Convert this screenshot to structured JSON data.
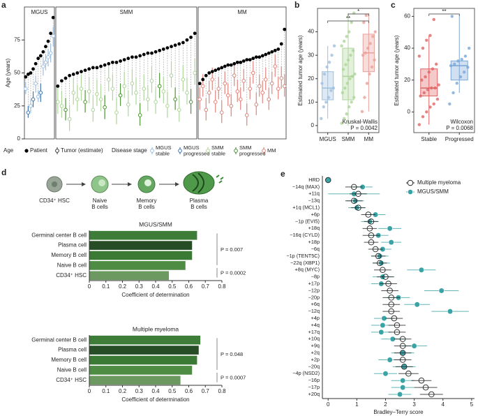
{
  "chart_data": [
    {
      "type": "dot_range",
      "panel_label": "a",
      "ylabel": "Age (years)",
      "ylim": [
        0,
        100
      ],
      "yticks": [
        0,
        25,
        50,
        75
      ],
      "age_legend_title": "Age",
      "patient_label": "Patient",
      "tumor_label": "Tumor (estimate)",
      "stage_legend_title": "Disease stage",
      "patient_color": "#000000",
      "facets": [
        {
          "title": "MGUS",
          "xlim": [
            0.5,
            12.5
          ],
          "series": [
            {
              "name": "MGUS stable",
              "color": "#9dbfe0",
              "x": [
                1,
                3,
                5,
                6,
                8,
                9,
                10,
                11,
                12
              ],
              "patient": [
                47,
                50,
                57,
                61,
                66,
                70,
                74,
                80,
                92
              ],
              "tumor": [
                38,
                25,
                42,
                32,
                55,
                58,
                62,
                65,
                78
              ],
              "low": [
                34,
                20,
                35,
                28,
                48,
                52,
                55,
                58,
                70
              ],
              "high": [
                43,
                30,
                48,
                37,
                62,
                64,
                68,
                72,
                85
              ]
            },
            {
              "name": "MGUS progressed",
              "color": "#3f78b0",
              "x": [
                2,
                4,
                7
              ],
              "patient": [
                49,
                53,
                63
              ],
              "tumor": [
                20,
                30,
                35
              ],
              "low": [
                16,
                24,
                28
              ],
              "high": [
                25,
                36,
                42
              ]
            }
          ]
        },
        {
          "title": "SMM",
          "xlim": [
            0.5,
            36.5
          ],
          "series": [
            {
              "name": "SMM stable",
              "color": "#add59a",
              "x": [
                1,
                2,
                4,
                5,
                6,
                7,
                9,
                10,
                11,
                12,
                14,
                15,
                16,
                18,
                19,
                20,
                21,
                23,
                24,
                25,
                26,
                28,
                29,
                30,
                32,
                33,
                34,
                36
              ],
              "patient": [
                40,
                44,
                48,
                49,
                50,
                51,
                53,
                54,
                54,
                55,
                57,
                58,
                58,
                60,
                61,
                62,
                62,
                64,
                65,
                65,
                66,
                68,
                69,
                70,
                72,
                73,
                75,
                80
              ],
              "tumor": [
                28,
                25,
                15,
                35,
                30,
                38,
                36,
                22,
                34,
                30,
                45,
                38,
                20,
                40,
                26,
                42,
                35,
                38,
                30,
                44,
                28,
                36,
                25,
                48,
                22,
                45,
                35,
                50
              ],
              "low": [
                19,
                16,
                6,
                26,
                21,
                29,
                27,
                13,
                25,
                21,
                36,
                29,
                11,
                31,
                17,
                33,
                26,
                29,
                21,
                35,
                19,
                27,
                16,
                39,
                13,
                36,
                26,
                41
              ],
              "high": [
                39,
                36,
                26,
                46,
                41,
                49,
                47,
                33,
                45,
                41,
                56,
                49,
                31,
                51,
                37,
                53,
                46,
                49,
                41,
                55,
                39,
                47,
                36,
                59,
                33,
                56,
                46,
                61
              ]
            },
            {
              "name": "SMM progressed",
              "color": "#4f9436",
              "x": [
                3,
                8,
                13,
                17,
                22,
                27,
                31,
                35
              ],
              "patient": [
                46,
                52,
                56,
                59,
                63,
                67,
                71,
                77
              ],
              "tumor": [
                22,
                28,
                24,
                33,
                18,
                40,
                30,
                28
              ],
              "low": [
                14,
                20,
                15,
                25,
                10,
                31,
                22,
                19
              ],
              "high": [
                31,
                37,
                33,
                42,
                27,
                50,
                39,
                38
              ]
            }
          ]
        },
        {
          "title": "MM",
          "xlim": [
            0.5,
            28.5
          ],
          "series": [
            {
              "name": "MM",
              "color": "#e0857c",
              "x": [
                1,
                2,
                3,
                4,
                5,
                6,
                7,
                8,
                9,
                10,
                11,
                12,
                13,
                14,
                15,
                16,
                17,
                18,
                19,
                20,
                21,
                22,
                23,
                24,
                25,
                26,
                27,
                28
              ],
              "patient": [
                42,
                45,
                48,
                50,
                51,
                52,
                53,
                54,
                55,
                56,
                56,
                57,
                58,
                58,
                59,
                60,
                60,
                61,
                62,
                62,
                63,
                64,
                65,
                66,
                67,
                68,
                72,
                83
              ],
              "tumor": [
                30,
                40,
                22,
                35,
                45,
                28,
                38,
                20,
                42,
                33,
                25,
                48,
                36,
                30,
                44,
                18,
                38,
                50,
                26,
                40,
                35,
                45,
                30,
                42,
                55,
                38,
                46,
                40
              ],
              "low": [
                22,
                32,
                14,
                27,
                37,
                20,
                30,
                12,
                34,
                25,
                17,
                40,
                28,
                22,
                36,
                10,
                30,
                42,
                18,
                32,
                27,
                37,
                22,
                34,
                47,
                30,
                38,
                32
              ],
              "high": [
                39,
                49,
                31,
                44,
                54,
                37,
                47,
                29,
                51,
                42,
                34,
                57,
                45,
                39,
                53,
                27,
                47,
                59,
                35,
                49,
                44,
                54,
                39,
                51,
                64,
                47,
                55,
                49
              ]
            }
          ]
        }
      ]
    },
    {
      "type": "box",
      "panel_label": "b",
      "ylabel": "Estimated tumor age (years)",
      "ylim": [
        -3,
        50
      ],
      "yticks": [
        0,
        10,
        20,
        30,
        40
      ],
      "categories": [
        "MGUS",
        "SMM",
        "MM"
      ],
      "series": [
        {
          "color": "#9dbfe0",
          "box": [
            3,
            11,
            16,
            23,
            34
          ],
          "points": [
            3,
            8,
            10,
            12,
            15,
            16,
            18,
            22,
            25,
            27,
            30,
            34
          ]
        },
        {
          "color": "#add59a",
          "box": [
            0,
            11,
            21,
            33,
            48
          ],
          "points": [
            1,
            3,
            5,
            8,
            10,
            12,
            14,
            16,
            18,
            20,
            21,
            22,
            24,
            26,
            28,
            30,
            32,
            34,
            36,
            38,
            40,
            44,
            48
          ]
        },
        {
          "color": "#e8a09a",
          "box": [
            6,
            23,
            31,
            39,
            48
          ],
          "points": [
            6,
            12,
            18,
            22,
            25,
            28,
            30,
            31,
            33,
            35,
            38,
            40,
            44,
            47
          ]
        }
      ],
      "brackets": [
        "**",
        "*"
      ],
      "test": "Kruskal-Wallis",
      "p_value": "P = 0.0042"
    },
    {
      "type": "box",
      "panel_label": "c",
      "ylabel": "Estimated tumor age (years)",
      "ylim": [
        -13,
        65
      ],
      "yticks": [
        0,
        20,
        40,
        60
      ],
      "categories": [
        "Stable",
        "Progressed"
      ],
      "series": [
        {
          "color": "#e06464",
          "box": [
            -8,
            10,
            15,
            27,
            48
          ],
          "points": [
            -8,
            -3,
            0,
            3,
            5,
            8,
            10,
            12,
            14,
            15,
            15,
            17,
            20,
            22,
            25,
            27,
            30,
            35,
            40,
            45,
            48,
            58
          ]
        },
        {
          "color": "#7aa6d6",
          "box": [
            12,
            20,
            29,
            32,
            61
          ],
          "points": [
            5,
            12,
            18,
            22,
            25,
            28,
            29,
            30,
            32,
            33,
            35,
            40,
            60
          ]
        }
      ],
      "brackets": [
        "**"
      ],
      "test": "Wilcoxon",
      "p_value": "P = 0.0068"
    },
    {
      "type": "bar",
      "orientation": "horizontal",
      "title": "MGUS/SMM",
      "categories": [
        "Germinal center B cell",
        "Plasma cell",
        "Memory B cell",
        "Naive B cell",
        "CD34⁺ HSC"
      ],
      "values": [
        0.65,
        0.62,
        0.62,
        0.58,
        0.48
      ],
      "colors": [
        "#3e7d38",
        "#264d26",
        "#3b7a34",
        "#4e8c44",
        "#6c9960"
      ],
      "xlim": [
        0,
        0.8
      ],
      "xticks": [
        0,
        0.1,
        0.2,
        0.3,
        0.4,
        0.5,
        0.6,
        0.7,
        0.8
      ],
      "xlabel": "Coefficient of determination",
      "p_values": [
        "P = 0.007",
        "P = 0.0002"
      ]
    },
    {
      "type": "bar",
      "orientation": "horizontal",
      "title": "Multiple myeloma",
      "categories": [
        "Germinal center B cell",
        "Plasma cell",
        "Memory B cell",
        "Naive B cell",
        "CD34⁺ HSC"
      ],
      "values": [
        0.67,
        0.66,
        0.65,
        0.62,
        0.55
      ],
      "colors": [
        "#3e7d38",
        "#264d26",
        "#3b7a34",
        "#4e8c44",
        "#6c9960"
      ],
      "xlim": [
        0,
        0.8
      ],
      "xticks": [
        0,
        0.1,
        0.2,
        0.3,
        0.4,
        0.5,
        0.6,
        0.7,
        0.8
      ],
      "xlabel": "Coefficient of determination",
      "p_values": [
        "P = 0.048",
        "P = 0.0007"
      ]
    },
    {
      "type": "dot",
      "panel_label": "e",
      "xlabel": "Bradley–Terry score",
      "xlim": [
        -0.2,
        5.1
      ],
      "xticks": [
        0,
        1,
        2,
        3,
        4,
        5
      ],
      "legend": "upper right",
      "categories": [
        "HRD",
        "−14q (MAX)",
        "+11q",
        "−13q",
        "+1q (MCL1)",
        "+6p",
        "−1p (EVI5)",
        "+18q",
        "−16q (CYLD)",
        "+18p",
        "−6q",
        "−1p (TENT5C)",
        "−22q (XBP1)",
        "+8q (MYC)",
        "−8p",
        "+17p",
        "−12p",
        "−20p",
        "+6q",
        "−12q",
        "+4p",
        "+4q",
        "+17q",
        "+10q",
        "+9q",
        "+2q",
        "+2p",
        "−20q",
        "−4p (NSD2)",
        "−16p",
        "−17p",
        "+20q"
      ],
      "series": [
        {
          "name": "Multiple myeloma",
          "color": "#222222",
          "filled": false,
          "values": [
            0,
            0.9,
            1.05,
            0.9,
            1.05,
            1.4,
            1.5,
            1.45,
            1.5,
            1.5,
            1.65,
            1.75,
            1.8,
            1.9,
            2.0,
            2.1,
            2.15,
            2.2,
            2.2,
            2.2,
            2.3,
            2.4,
            2.4,
            2.6,
            2.6,
            2.6,
            2.6,
            2.65,
            2.8,
            3.25,
            3.4,
            3.6
          ],
          "errors": [
            0,
            0.3,
            0.3,
            0.3,
            0.25,
            0.25,
            0.25,
            0.25,
            0.3,
            0.25,
            0.25,
            0.25,
            0.25,
            0.3,
            0.3,
            0.3,
            0.3,
            0.3,
            0.3,
            0.3,
            0.3,
            0.3,
            0.3,
            0.3,
            0.3,
            0.3,
            0.3,
            0.3,
            0.35,
            0.35,
            0.4,
            0.4
          ]
        },
        {
          "name": "MGUS/SMM",
          "color": "#3aa3a6",
          "filled": true,
          "values": [
            0,
            1.2,
            0.9,
            0.95,
            1.0,
            1.65,
            1.45,
            2.15,
            1.75,
            2.2,
            1.9,
            1.8,
            1.85,
            3.25,
            1.9,
            1.85,
            3.95,
            2.45,
            3.1,
            4.25,
            1.95,
            1.9,
            1.85,
            2.25,
            3.0,
            2.6,
            2.15,
            2.65,
            2.0,
            2.6,
            2.6,
            2.5
          ],
          "errors": [
            0,
            0.35,
            0.9,
            0.3,
            0.3,
            0.35,
            0.3,
            0.4,
            0.35,
            0.35,
            0.3,
            0.3,
            0.3,
            0.5,
            0.35,
            0.35,
            0.6,
            0.4,
            0.45,
            0.65,
            0.35,
            0.4,
            0.35,
            0.4,
            0.45,
            0.4,
            0.4,
            0.4,
            0.4,
            0.4,
            0.4,
            0.4
          ]
        }
      ]
    }
  ],
  "diagram": {
    "panel_label": "d",
    "labels": [
      [
        "CD34⁺ HSC"
      ],
      [
        "Naive",
        "B cells"
      ],
      [
        "Memory",
        "B cells"
      ],
      [
        "Plasma",
        "B cells"
      ]
    ]
  }
}
